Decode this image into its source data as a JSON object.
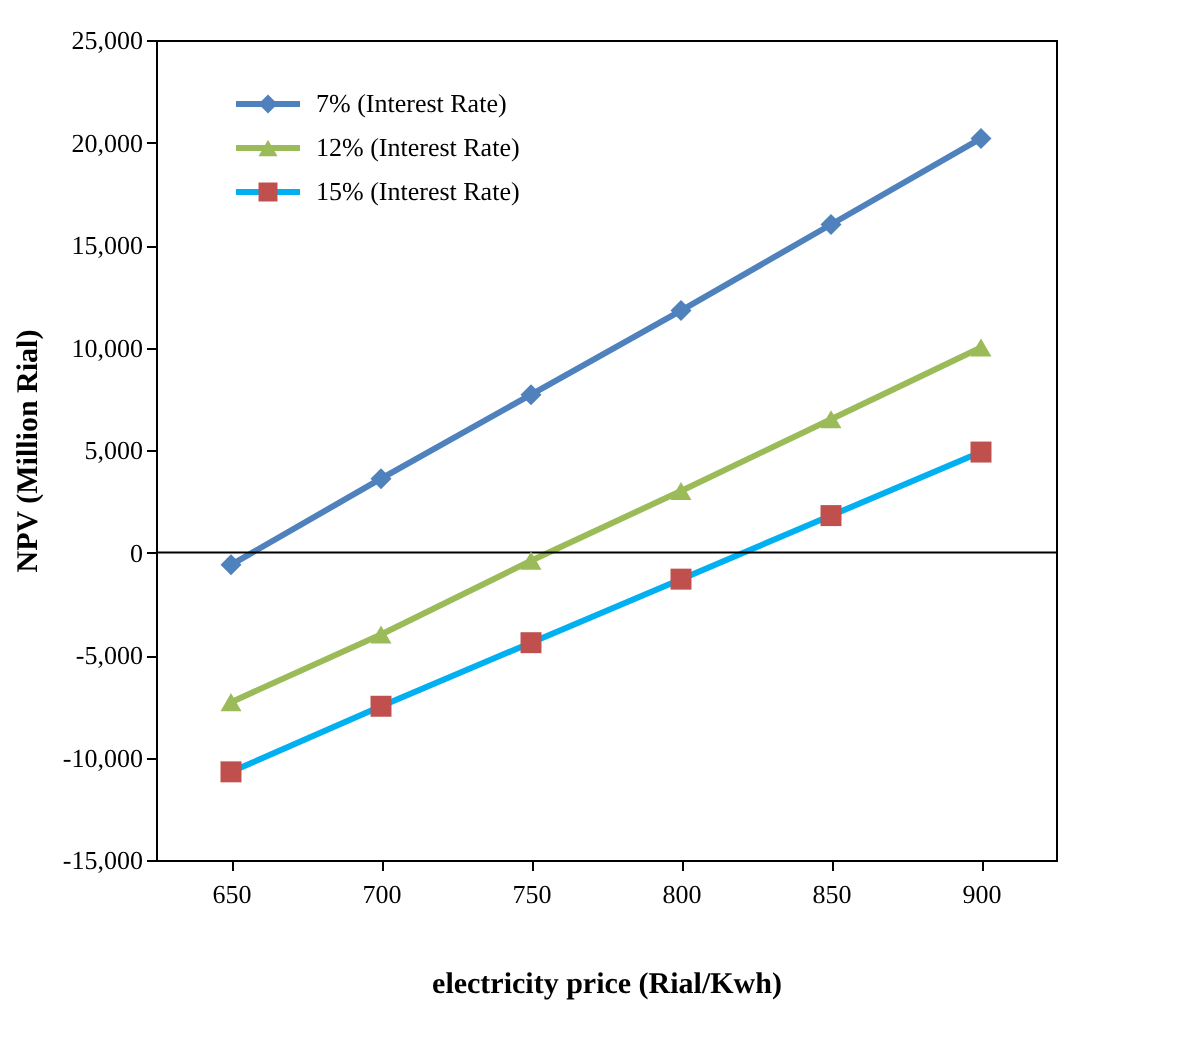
{
  "chart_data": {
    "type": "line",
    "xlabel": "electricity price (Rial/Kwh)",
    "ylabel": "NPV (Million Rial)",
    "x": [
      650,
      700,
      750,
      800,
      850,
      900
    ],
    "series": [
      {
        "name": "7% (Interest Rate)",
        "color": "#4f81bd",
        "marker": "diamond",
        "values": [
          -600,
          3600,
          7700,
          11800,
          16000,
          20200
        ]
      },
      {
        "name": "12% (Interest Rate)",
        "color": "#9bbb59",
        "marker": "triangle",
        "values": [
          -7300,
          -4000,
          -400,
          3000,
          6500,
          10000
        ]
      },
      {
        "name": "15% (Interest Rate)",
        "color": "#00b0f0",
        "colors": [
          "#c0504d",
          "#c0504d",
          "#c0504d",
          "#c0504d",
          "#c0504d",
          "#c0504d"
        ],
        "marker": "square",
        "values": [
          -10700,
          -7500,
          -4400,
          -1300,
          1800,
          4900
        ]
      }
    ],
    "xlim": [
      625,
      925
    ],
    "xticks": [
      650,
      700,
      750,
      800,
      850,
      900
    ],
    "ylim": [
      -15000,
      25000
    ],
    "yticks": [
      {
        "value": -15000,
        "label": "-15,000"
      },
      {
        "value": -10000,
        "label": "-10,000"
      },
      {
        "value": -5000,
        "label": "-5,000"
      },
      0,
      {
        "value": 5000,
        "label": "5,000"
      },
      {
        "value": 10000,
        "label": "10,000"
      },
      {
        "value": 15000,
        "label": "15,000"
      },
      {
        "value": 20000,
        "label": "20,000"
      },
      {
        "value": 25000,
        "label": "25,000"
      }
    ],
    "ref_lines": [
      {
        "axis": "y",
        "value": 0
      }
    ],
    "legend": "top left",
    "grid": false
  }
}
